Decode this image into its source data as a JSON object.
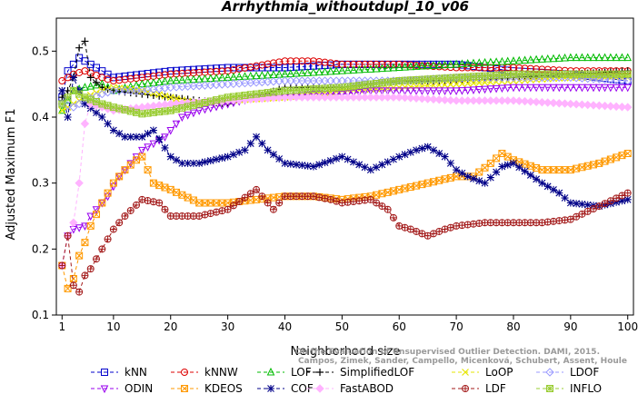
{
  "chart_data": {
    "type": "line",
    "title": "Arrhythmia_withoutdupl_10_v06",
    "xlabel": "Neighborhood size",
    "ylabel": "Adjusted Maximum F1",
    "xlim": [
      0,
      101
    ],
    "ylim": [
      0.1,
      0.55
    ],
    "xticks": [
      1,
      10,
      20,
      30,
      40,
      50,
      60,
      70,
      80,
      90,
      100
    ],
    "yticks": [
      0.1,
      0.2,
      0.3,
      0.4,
      0.5
    ],
    "grid": false,
    "legend_position": "bottom",
    "watermark": [
      "Campos, Zimek, Sander, Campello, Micenková, Schubert, Assent, Houle",
      "On the Evaluation of Unsupervised Outlier Detection. DAMI, 2015."
    ],
    "series": [
      {
        "name": "kNN",
        "color": "#0000cc",
        "marker": "square",
        "anchors": [
          [
            1,
            0.43
          ],
          [
            2,
            0.47
          ],
          [
            3,
            0.48
          ],
          [
            4,
            0.49
          ],
          [
            5,
            0.485
          ],
          [
            6,
            0.48
          ],
          [
            8,
            0.47
          ],
          [
            10,
            0.46
          ],
          [
            15,
            0.465
          ],
          [
            20,
            0.47
          ],
          [
            30,
            0.475
          ],
          [
            40,
            0.475
          ],
          [
            50,
            0.48
          ],
          [
            60,
            0.48
          ],
          [
            70,
            0.48
          ],
          [
            80,
            0.47
          ],
          [
            90,
            0.465
          ],
          [
            100,
            0.455
          ]
        ]
      },
      {
        "name": "kNNW",
        "color": "#dd0000",
        "marker": "circle",
        "anchors": [
          [
            1,
            0.455
          ],
          [
            2,
            0.46
          ],
          [
            3,
            0.465
          ],
          [
            5,
            0.47
          ],
          [
            8,
            0.46
          ],
          [
            10,
            0.455
          ],
          [
            15,
            0.46
          ],
          [
            20,
            0.465
          ],
          [
            30,
            0.47
          ],
          [
            40,
            0.485
          ],
          [
            45,
            0.485
          ],
          [
            50,
            0.48
          ],
          [
            60,
            0.48
          ],
          [
            70,
            0.475
          ],
          [
            80,
            0.475
          ],
          [
            90,
            0.47
          ],
          [
            100,
            0.47
          ]
        ]
      },
      {
        "name": "LOF",
        "color": "#00bb00",
        "marker": "triangle",
        "anchors": [
          [
            1,
            0.41
          ],
          [
            3,
            0.44
          ],
          [
            5,
            0.445
          ],
          [
            8,
            0.45
          ],
          [
            10,
            0.44
          ],
          [
            15,
            0.45
          ],
          [
            20,
            0.455
          ],
          [
            30,
            0.46
          ],
          [
            40,
            0.465
          ],
          [
            50,
            0.47
          ],
          [
            60,
            0.475
          ],
          [
            70,
            0.48
          ],
          [
            80,
            0.485
          ],
          [
            90,
            0.49
          ],
          [
            100,
            0.49
          ]
        ]
      },
      {
        "name": "SimplifiedLOF",
        "color": "#000000",
        "marker": "plus",
        "anchors": [
          [
            1,
            0.43
          ],
          [
            2,
            0.44
          ],
          [
            3,
            0.46
          ],
          [
            4,
            0.505
          ],
          [
            5,
            0.515
          ],
          [
            6,
            0.46
          ],
          [
            8,
            0.445
          ],
          [
            10,
            0.44
          ],
          [
            15,
            0.435
          ],
          [
            20,
            0.43
          ],
          [
            25,
            0.425
          ],
          [
            30,
            0.42
          ],
          [
            35,
            0.43
          ],
          [
            40,
            0.445
          ],
          [
            50,
            0.445
          ],
          [
            60,
            0.455
          ],
          [
            70,
            0.455
          ],
          [
            80,
            0.46
          ],
          [
            90,
            0.465
          ],
          [
            100,
            0.47
          ]
        ]
      },
      {
        "name": "LoOP",
        "color": "#e6e600",
        "marker": "x",
        "anchors": [
          [
            1,
            0.41
          ],
          [
            3,
            0.42
          ],
          [
            5,
            0.43
          ],
          [
            8,
            0.44
          ],
          [
            10,
            0.445
          ],
          [
            15,
            0.44
          ],
          [
            20,
            0.43
          ],
          [
            25,
            0.42
          ],
          [
            30,
            0.425
          ],
          [
            40,
            0.43
          ],
          [
            50,
            0.44
          ],
          [
            60,
            0.445
          ],
          [
            70,
            0.45
          ],
          [
            80,
            0.455
          ],
          [
            90,
            0.46
          ],
          [
            100,
            0.46
          ]
        ]
      },
      {
        "name": "LDOF",
        "color": "#9999ff",
        "marker": "diamond",
        "anchors": [
          [
            1,
            0.42
          ],
          [
            3,
            0.415
          ],
          [
            5,
            0.425
          ],
          [
            8,
            0.435
          ],
          [
            10,
            0.44
          ],
          [
            15,
            0.44
          ],
          [
            20,
            0.445
          ],
          [
            30,
            0.45
          ],
          [
            40,
            0.455
          ],
          [
            50,
            0.455
          ],
          [
            60,
            0.455
          ],
          [
            70,
            0.46
          ],
          [
            80,
            0.46
          ],
          [
            90,
            0.46
          ],
          [
            100,
            0.455
          ]
        ]
      },
      {
        "name": "ODIN",
        "color": "#9900ee",
        "marker": "triangle-down",
        "anchors": [
          [
            1,
            0.175
          ],
          [
            2,
            0.22
          ],
          [
            3,
            0.23
          ],
          [
            5,
            0.235
          ],
          [
            6,
            0.25
          ],
          [
            7,
            0.26
          ],
          [
            9,
            0.28
          ],
          [
            11,
            0.31
          ],
          [
            13,
            0.33
          ],
          [
            15,
            0.35
          ],
          [
            17,
            0.36
          ],
          [
            19,
            0.37
          ],
          [
            20,
            0.38
          ],
          [
            22,
            0.4
          ],
          [
            25,
            0.41
          ],
          [
            30,
            0.42
          ],
          [
            35,
            0.43
          ],
          [
            40,
            0.43
          ],
          [
            45,
            0.435
          ],
          [
            50,
            0.435
          ],
          [
            55,
            0.44
          ],
          [
            60,
            0.44
          ],
          [
            70,
            0.44
          ],
          [
            80,
            0.445
          ],
          [
            90,
            0.445
          ],
          [
            100,
            0.445
          ]
        ]
      },
      {
        "name": "KDEOS",
        "color": "#ff9900",
        "marker": "square-x",
        "anchors": [
          [
            1,
            0.175
          ],
          [
            2,
            0.14
          ],
          [
            3,
            0.155
          ],
          [
            4,
            0.19
          ],
          [
            5,
            0.21
          ],
          [
            6,
            0.235
          ],
          [
            8,
            0.27
          ],
          [
            10,
            0.3
          ],
          [
            12,
            0.32
          ],
          [
            14,
            0.335
          ],
          [
            15,
            0.34
          ],
          [
            17,
            0.3
          ],
          [
            20,
            0.29
          ],
          [
            25,
            0.27
          ],
          [
            30,
            0.27
          ],
          [
            35,
            0.275
          ],
          [
            40,
            0.28
          ],
          [
            45,
            0.28
          ],
          [
            50,
            0.275
          ],
          [
            55,
            0.28
          ],
          [
            60,
            0.29
          ],
          [
            65,
            0.3
          ],
          [
            70,
            0.31
          ],
          [
            73,
            0.31
          ],
          [
            76,
            0.33
          ],
          [
            78,
            0.345
          ],
          [
            80,
            0.335
          ],
          [
            85,
            0.32
          ],
          [
            90,
            0.32
          ],
          [
            95,
            0.33
          ],
          [
            100,
            0.345
          ]
        ]
      },
      {
        "name": "COF",
        "color": "#000088",
        "marker": "asterisk",
        "anchors": [
          [
            1,
            0.44
          ],
          [
            2,
            0.4
          ],
          [
            3,
            0.46
          ],
          [
            5,
            0.42
          ],
          [
            8,
            0.4
          ],
          [
            10,
            0.38
          ],
          [
            12,
            0.37
          ],
          [
            15,
            0.37
          ],
          [
            17,
            0.38
          ],
          [
            20,
            0.34
          ],
          [
            22,
            0.33
          ],
          [
            25,
            0.33
          ],
          [
            30,
            0.34
          ],
          [
            33,
            0.35
          ],
          [
            35,
            0.37
          ],
          [
            37,
            0.35
          ],
          [
            40,
            0.33
          ],
          [
            45,
            0.325
          ],
          [
            50,
            0.34
          ],
          [
            55,
            0.32
          ],
          [
            60,
            0.34
          ],
          [
            63,
            0.35
          ],
          [
            65,
            0.355
          ],
          [
            68,
            0.34
          ],
          [
            70,
            0.32
          ],
          [
            72,
            0.31
          ],
          [
            75,
            0.3
          ],
          [
            78,
            0.325
          ],
          [
            80,
            0.33
          ],
          [
            85,
            0.3
          ],
          [
            88,
            0.285
          ],
          [
            90,
            0.27
          ],
          [
            95,
            0.265
          ],
          [
            100,
            0.275
          ]
        ]
      },
      {
        "name": "FastABOD",
        "color": "#ffb3ff",
        "marker": "diamond-filled",
        "anchors": [
          [
            1,
            0.175
          ],
          [
            2,
            0.22
          ],
          [
            3,
            0.24
          ],
          [
            4,
            0.3
          ],
          [
            5,
            0.39
          ],
          [
            6,
            0.42
          ],
          [
            8,
            0.415
          ],
          [
            10,
            0.41
          ],
          [
            15,
            0.415
          ],
          [
            20,
            0.42
          ],
          [
            30,
            0.425
          ],
          [
            40,
            0.43
          ],
          [
            50,
            0.43
          ],
          [
            60,
            0.43
          ],
          [
            70,
            0.425
          ],
          [
            80,
            0.425
          ],
          [
            90,
            0.42
          ],
          [
            100,
            0.415
          ]
        ]
      },
      {
        "name": "LDF",
        "color": "#a31a1a",
        "marker": "circle-plus",
        "anchors": [
          [
            1,
            0.175
          ],
          [
            2,
            0.22
          ],
          [
            3,
            0.145
          ],
          [
            4,
            0.135
          ],
          [
            5,
            0.16
          ],
          [
            6,
            0.17
          ],
          [
            8,
            0.2
          ],
          [
            10,
            0.23
          ],
          [
            12,
            0.25
          ],
          [
            15,
            0.275
          ],
          [
            18,
            0.27
          ],
          [
            20,
            0.25
          ],
          [
            25,
            0.25
          ],
          [
            30,
            0.26
          ],
          [
            35,
            0.29
          ],
          [
            38,
            0.26
          ],
          [
            40,
            0.28
          ],
          [
            45,
            0.28
          ],
          [
            48,
            0.275
          ],
          [
            50,
            0.27
          ],
          [
            55,
            0.275
          ],
          [
            58,
            0.26
          ],
          [
            60,
            0.235
          ],
          [
            62,
            0.23
          ],
          [
            65,
            0.22
          ],
          [
            68,
            0.23
          ],
          [
            70,
            0.235
          ],
          [
            75,
            0.24
          ],
          [
            80,
            0.24
          ],
          [
            85,
            0.24
          ],
          [
            90,
            0.245
          ],
          [
            95,
            0.265
          ],
          [
            100,
            0.285
          ]
        ]
      },
      {
        "name": "INFLO",
        "color": "#99cc33",
        "marker": "square-star",
        "anchors": [
          [
            1,
            0.42
          ],
          [
            2,
            0.43
          ],
          [
            3,
            0.44
          ],
          [
            5,
            0.43
          ],
          [
            8,
            0.42
          ],
          [
            10,
            0.415
          ],
          [
            15,
            0.405
          ],
          [
            20,
            0.41
          ],
          [
            25,
            0.42
          ],
          [
            30,
            0.43
          ],
          [
            40,
            0.44
          ],
          [
            50,
            0.445
          ],
          [
            60,
            0.455
          ],
          [
            70,
            0.46
          ],
          [
            80,
            0.465
          ],
          [
            90,
            0.465
          ],
          [
            100,
            0.465
          ]
        ]
      }
    ]
  }
}
